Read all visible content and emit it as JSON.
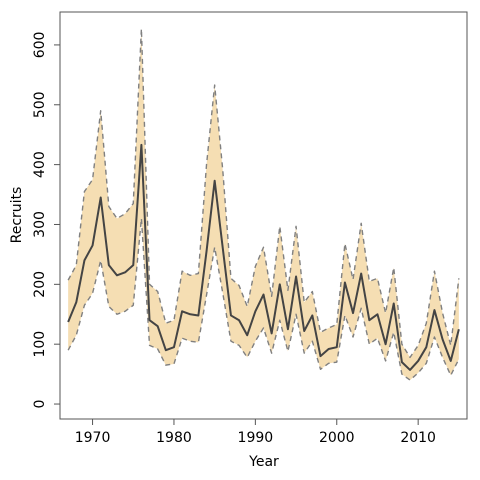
{
  "chart_data": {
    "type": "line",
    "title": "",
    "xlabel": "Year",
    "ylabel": "Recruits",
    "xlim": [
      1966,
      2016
    ],
    "ylim": [
      -25,
      655
    ],
    "x_ticks": [
      1970,
      1980,
      1990,
      2000,
      2010
    ],
    "y_ticks": [
      0,
      100,
      200,
      300,
      400,
      500,
      600
    ],
    "grid": false,
    "legend": "none",
    "colors": {
      "band": "#f5deb3",
      "bounds": "#808080",
      "median": "#444444",
      "frame": "#555555"
    },
    "years": [
      1967,
      1968,
      1969,
      1970,
      1971,
      1972,
      1973,
      1974,
      1975,
      1976,
      1977,
      1978,
      1979,
      1980,
      1981,
      1982,
      1983,
      1984,
      1985,
      1986,
      1987,
      1988,
      1989,
      1990,
      1991,
      1992,
      1993,
      1994,
      1995,
      1996,
      1997,
      1998,
      1999,
      2000,
      2001,
      2002,
      2003,
      2004,
      2005,
      2006,
      2007,
      2008,
      2009,
      2010,
      2011,
      2012,
      2013,
      2014,
      2015
    ],
    "series": [
      {
        "role": "median",
        "values": [
          137,
          170,
          240,
          265,
          345,
          232,
          215,
          220,
          232,
          433,
          140,
          130,
          90,
          95,
          155,
          150,
          148,
          255,
          373,
          260,
          148,
          140,
          115,
          155,
          183,
          118,
          200,
          125,
          213,
          122,
          148,
          80,
          92,
          95,
          203,
          152,
          218,
          140,
          150,
          100,
          168,
          70,
          57,
          72,
          95,
          157,
          108,
          72,
          125
        ]
      },
      {
        "role": "upper",
        "values": [
          207,
          232,
          355,
          375,
          490,
          330,
          310,
          318,
          335,
          627,
          200,
          188,
          135,
          140,
          222,
          215,
          218,
          400,
          533,
          390,
          210,
          198,
          163,
          230,
          262,
          180,
          297,
          190,
          297,
          170,
          188,
          120,
          127,
          133,
          268,
          208,
          302,
          205,
          210,
          152,
          228,
          100,
          78,
          98,
          135,
          222,
          152,
          98,
          210
        ]
      },
      {
        "role": "lower",
        "values": [
          90,
          115,
          165,
          185,
          240,
          163,
          150,
          155,
          165,
          310,
          98,
          92,
          65,
          67,
          110,
          105,
          103,
          182,
          262,
          185,
          105,
          98,
          78,
          105,
          127,
          85,
          140,
          88,
          150,
          85,
          105,
          58,
          68,
          70,
          148,
          112,
          160,
          100,
          110,
          72,
          120,
          50,
          40,
          52,
          68,
          112,
          78,
          48,
          75
        ]
      }
    ]
  }
}
